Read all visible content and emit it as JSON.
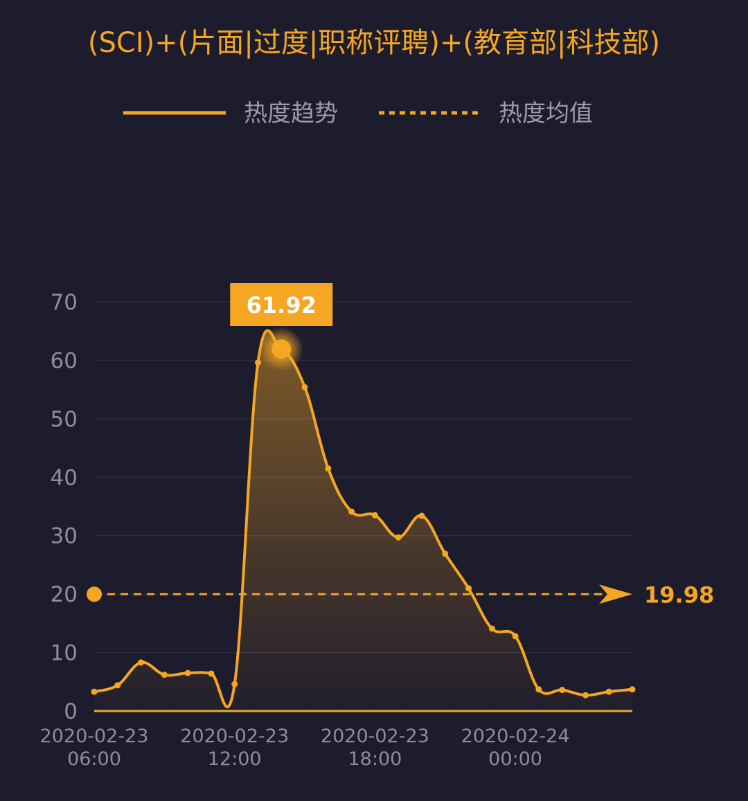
{
  "chart_data": {
    "type": "line",
    "title": "(SCI)+(片面|过度|职称评聘)+(教育部|科技部)",
    "categories": [
      "2020-02-23 06:00",
      null,
      null,
      null,
      null,
      null,
      "2020-02-23 12:00",
      null,
      null,
      null,
      null,
      null,
      "2020-02-23 18:00",
      null,
      null,
      null,
      null,
      null,
      "2020-02-24 00:00",
      null,
      null,
      null,
      null,
      null
    ],
    "series": [
      {
        "name": "热度趋势",
        "color": "#f5a623",
        "values": [
          3.3,
          4.4,
          8.3,
          6.2,
          6.5,
          6.4,
          4.6,
          59.6,
          61.92,
          55.4,
          41.5,
          34.1,
          33.5,
          29.7,
          33.4,
          26.9,
          21.0,
          14.1,
          12.8,
          3.7,
          3.6,
          2.7,
          3.3,
          3.7
        ]
      }
    ],
    "mean": {
      "name": "热度均值",
      "value": 19.98
    },
    "ylim": [
      0,
      70
    ],
    "yticks": [
      0,
      10,
      20,
      30,
      40,
      50,
      60,
      70
    ],
    "grid": true
  }
}
